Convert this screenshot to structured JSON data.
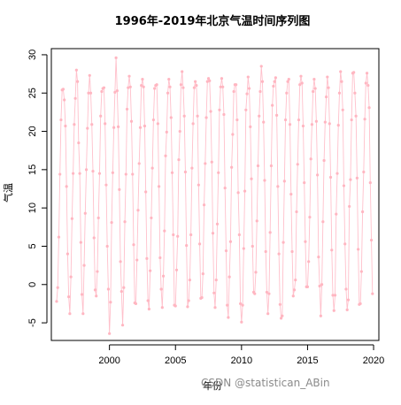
{
  "watermark": "CSDN @statistican_ABin",
  "chart_data": {
    "type": "line",
    "title": "1996年-2019年北京气温时间序列图",
    "xlabel": "年份",
    "ylabel": "气温",
    "xlim": [
      1995.6,
      2020.4
    ],
    "ylim": [
      -7.3,
      30.8
    ],
    "x_ticks": [
      2000,
      2005,
      2010,
      2015,
      2020
    ],
    "y_ticks": [
      -5,
      0,
      5,
      10,
      15,
      20,
      25,
      30
    ],
    "x_start": 1996,
    "frequency": 12,
    "line_color": "#ffc0cb",
    "point_color": "#ffb6c1",
    "series": [
      {
        "values": [
          -2.2,
          -0.4,
          6.2,
          14.4,
          21.5,
          25.4,
          25.5,
          24.1,
          20.7,
          12.8,
          4.0,
          -1.6,
          -3.8,
          1.0,
          8.6,
          14.5,
          20.9,
          24.3,
          28.0,
          26.5,
          18.5,
          14.5,
          5.5,
          -1.3,
          -3.8,
          2.5,
          9.3,
          15.0,
          20.4,
          25.0,
          27.3,
          25.0,
          20.9,
          14.8,
          6.1,
          -0.7,
          -1.5,
          1.7,
          8.7,
          14.5,
          22.0,
          25.2,
          25.6,
          25.7,
          21.0,
          13.0,
          5.0,
          -0.6,
          -6.4,
          -2.3,
          8.1,
          14.6,
          20.5,
          25.1,
          29.6,
          25.3,
          20.6,
          12.4,
          3.0,
          -0.9,
          -5.3,
          -0.4,
          8.2,
          14.4,
          22.9,
          25.7,
          27.2,
          25.8,
          21.3,
          14.4,
          5.2,
          -2.4,
          -2.5,
          3.2,
          9.7,
          15.8,
          20.5,
          26.0,
          26.8,
          25.8,
          20.7,
          12.1,
          3.4,
          -2.1,
          -3.2,
          1.8,
          8.7,
          15.2,
          21.5,
          25.6,
          26.0,
          26.1,
          21.0,
          12.8,
          3.5,
          -0.6,
          -3.0,
          1.1,
          7.0,
          16.8,
          19.9,
          25.0,
          26.8,
          25.8,
          21.8,
          14.6,
          6.5,
          -2.7,
          -2.8,
          1.9,
          6.3,
          16.3,
          20.0,
          26.1,
          27.8,
          25.7,
          22.0,
          14.7,
          5.1,
          -2.9,
          -2.1,
          0.6,
          6.5,
          15.2,
          21.0,
          25.7,
          26.5,
          26.0,
          22.0,
          13.0,
          5.3,
          -1.8,
          -1.7,
          1.4,
          10.4,
          15.8,
          21.8,
          26.5,
          26.9,
          26.6,
          22.6,
          16.0,
          6.7,
          -1.1,
          -3.0,
          0.6,
          7.9,
          14.6,
          22.8,
          25.8,
          26.9,
          25.8,
          22.2,
          12.6,
          4.4,
          -2.7,
          -4.3,
          1.0,
          5.6,
          15.3,
          19.6,
          25.2,
          26.1,
          26.1,
          21.5,
          12.0,
          6.5,
          -2.5,
          -4.9,
          -2.7,
          4.7,
          12.2,
          22.8,
          24.9,
          27.1,
          25.6,
          20.6,
          13.8,
          5.0,
          -1.0,
          -1.2,
          1.6,
          8.3,
          15.5,
          22.0,
          25.2,
          28.5,
          26.5,
          21.2,
          13.6,
          4.3,
          -1.0,
          -3.8,
          -1.2,
          6.8,
          15.5,
          23.4,
          25.9,
          26.5,
          27.0,
          22.1,
          12.8,
          4.0,
          -2.6,
          -4.4,
          -4.1,
          5.5,
          13.5,
          21.5,
          25.0,
          26.5,
          26.8,
          20.9,
          11.8,
          4.3,
          -1.5,
          -0.7,
          0.6,
          9.5,
          15.7,
          21.5,
          26.1,
          27.2,
          26.3,
          20.7,
          13.3,
          5.6,
          -0.3,
          -0.3,
          3.0,
          8.8,
          16.4,
          20.9,
          25.2,
          26.8,
          25.6,
          21.3,
          14.3,
          3.6,
          -0.2,
          -4.1,
          0.0,
          8.2,
          16.2,
          21.2,
          24.5,
          27.1,
          25.7,
          21.0,
          14.0,
          4.5,
          -1.4,
          -3.4,
          -1.4,
          9.2,
          14.5,
          20.8,
          25.0,
          27.8,
          26.5,
          22.8,
          12.9,
          5.3,
          -0.6,
          -3.3,
          -2.0,
          10.2,
          13.7,
          21.5,
          27.6,
          27.7,
          25.0,
          22.0,
          13.9,
          4.6,
          -2.6,
          -2.5,
          1.7,
          9.5,
          14.7,
          21.6,
          26.3,
          27.6,
          26.0,
          23.1,
          13.3,
          5.8,
          -1.2
        ]
      }
    ]
  }
}
